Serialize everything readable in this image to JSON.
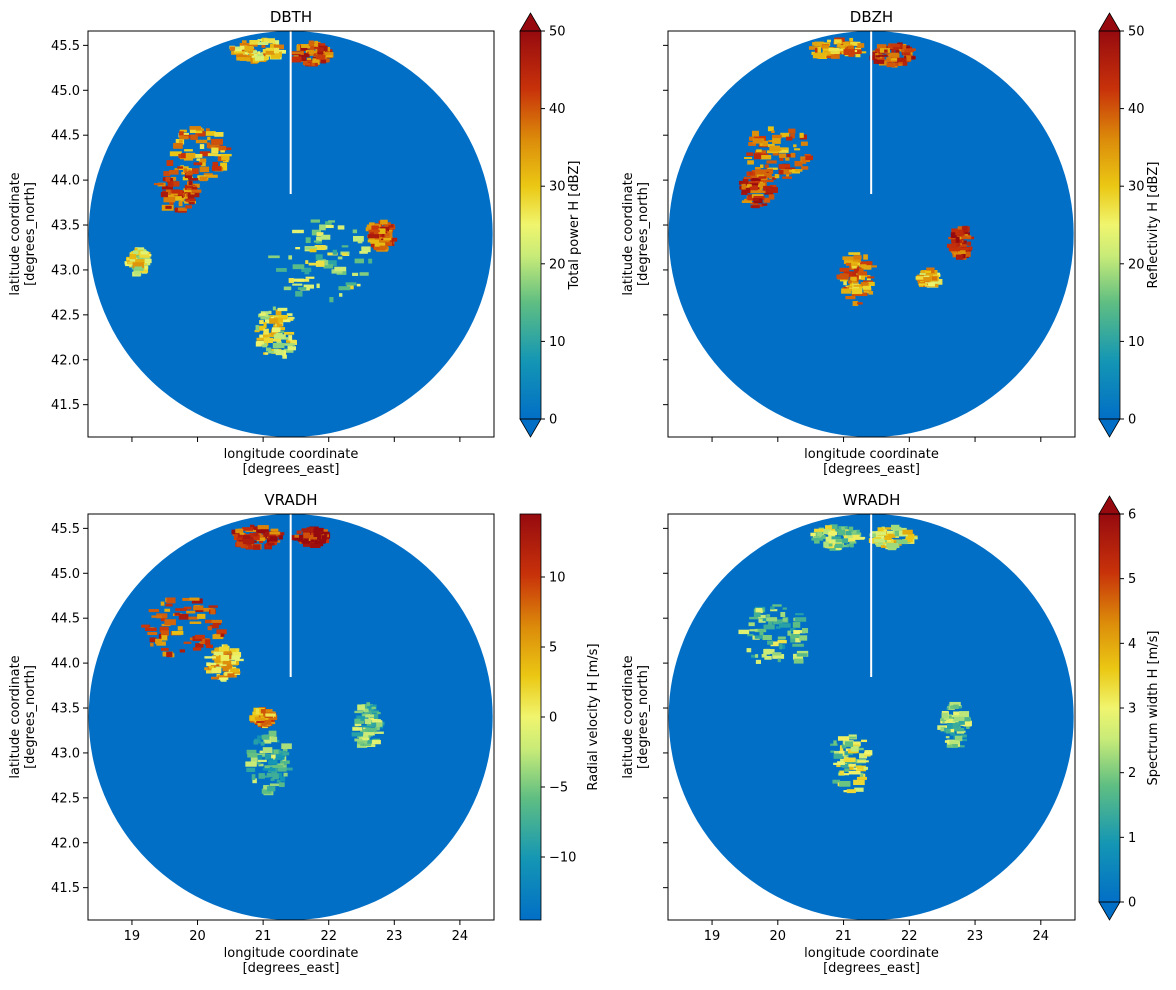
{
  "chart_data": [
    {
      "type": "heatmap",
      "title": "DBTH",
      "xlabel": "longitude coordinate\n[degrees_east]",
      "ylabel": "latitude coordinate\n[degrees_north]",
      "xlim": [
        18.33,
        24.52
      ],
      "ylim": [
        41.14,
        45.66
      ],
      "xticks": [
        19,
        20,
        21,
        22,
        23,
        24
      ],
      "yticks": [
        41.5,
        42.0,
        42.5,
        43.0,
        43.5,
        44.0,
        44.5,
        45.0,
        45.5
      ],
      "show_xtick_labels": false,
      "show_ytick_labels": true,
      "radar_center": [
        21.42,
        43.4
      ],
      "radar_range_deg": [
        3.08,
        2.26
      ],
      "colorbar": {
        "label": "Total power H [dBZ]",
        "min": 0,
        "max": 50,
        "ticks": [
          0,
          10,
          20,
          30,
          40,
          50
        ],
        "colormap": "HomeyerRainbow",
        "extend": "both"
      },
      "background_value_color": "#026fc6",
      "echo_regions": [
        {
          "center": [
            20.9,
            45.45
          ],
          "size": [
            0.8,
            0.25
          ],
          "value": 30
        },
        {
          "center": [
            21.75,
            45.4
          ],
          "size": [
            0.6,
            0.25
          ],
          "value": 40
        },
        {
          "center": [
            20.0,
            44.3
          ],
          "size": [
            1.0,
            0.6
          ],
          "value": 35
        },
        {
          "center": [
            19.7,
            43.9
          ],
          "size": [
            0.6,
            0.5
          ],
          "value": 40
        },
        {
          "center": [
            21.9,
            43.1
          ],
          "size": [
            1.5,
            0.9
          ],
          "value": 20
        },
        {
          "center": [
            22.8,
            43.4
          ],
          "size": [
            0.35,
            0.35
          ],
          "value": 40
        },
        {
          "center": [
            21.2,
            42.3
          ],
          "size": [
            0.6,
            0.6
          ],
          "value": 25
        },
        {
          "center": [
            19.1,
            43.1
          ],
          "size": [
            0.3,
            0.3
          ],
          "value": 25
        }
      ]
    },
    {
      "type": "heatmap",
      "title": "DBZH",
      "xlabel": "longitude coordinate\n[degrees_east]",
      "ylabel": "latitude coordinate\n[degrees_north]",
      "xlim": [
        18.33,
        24.52
      ],
      "ylim": [
        41.14,
        45.66
      ],
      "xticks": [
        19,
        20,
        21,
        22,
        23,
        24
      ],
      "yticks": [
        41.5,
        42.0,
        42.5,
        43.0,
        43.5,
        44.0,
        44.5,
        45.0,
        45.5
      ],
      "show_xtick_labels": false,
      "show_ytick_labels": false,
      "radar_center": [
        21.42,
        43.4
      ],
      "radar_range_deg": [
        3.08,
        2.26
      ],
      "colorbar": {
        "label": "Reflectivity H [dBZ]",
        "min": 0,
        "max": 50,
        "ticks": [
          0,
          10,
          20,
          30,
          40,
          50
        ],
        "colormap": "HomeyerRainbow",
        "extend": "both"
      },
      "background_value_color": "#026fc6",
      "echo_regions": [
        {
          "center": [
            20.9,
            45.45
          ],
          "size": [
            0.8,
            0.25
          ],
          "value": 35
        },
        {
          "center": [
            21.75,
            45.4
          ],
          "size": [
            0.6,
            0.25
          ],
          "value": 42
        },
        {
          "center": [
            20.0,
            44.3
          ],
          "size": [
            1.0,
            0.6
          ],
          "value": 38
        },
        {
          "center": [
            19.7,
            43.9
          ],
          "size": [
            0.5,
            0.4
          ],
          "value": 42
        },
        {
          "center": [
            21.2,
            42.9
          ],
          "size": [
            0.5,
            0.6
          ],
          "value": 35
        },
        {
          "center": [
            22.8,
            43.3
          ],
          "size": [
            0.3,
            0.35
          ],
          "value": 42
        },
        {
          "center": [
            22.3,
            42.9
          ],
          "size": [
            0.25,
            0.2
          ],
          "value": 30
        }
      ]
    },
    {
      "type": "heatmap",
      "title": "VRADH",
      "xlabel": "longitude coordinate\n[degrees_east]",
      "ylabel": "latitude coordinate\n[degrees_north]",
      "xlim": [
        18.33,
        24.52
      ],
      "ylim": [
        41.14,
        45.66
      ],
      "xticks": [
        19,
        20,
        21,
        22,
        23,
        24
      ],
      "yticks": [
        41.5,
        42.0,
        42.5,
        43.0,
        43.5,
        44.0,
        44.5,
        45.0,
        45.5
      ],
      "show_xtick_labels": true,
      "show_ytick_labels": true,
      "radar_center": [
        21.42,
        43.4
      ],
      "radar_range_deg": [
        3.08,
        2.26
      ],
      "colorbar": {
        "label": "Radial velocity H [m/s]",
        "min": -14.5,
        "max": 14.5,
        "ticks": [
          -10,
          -5,
          0,
          5,
          10
        ],
        "tick_labels": [
          "−10",
          "−5",
          "0",
          "5",
          "10"
        ],
        "colormap": "HomeyerRainbow",
        "extend": "neither"
      },
      "background_value_color": "#026fc6",
      "echo_regions": [
        {
          "center": [
            20.9,
            45.4
          ],
          "size": [
            0.8,
            0.25
          ],
          "value": 10
        },
        {
          "center": [
            21.75,
            45.4
          ],
          "size": [
            0.5,
            0.2
          ],
          "value": 12
        },
        {
          "center": [
            19.8,
            44.4
          ],
          "size": [
            1.2,
            0.7
          ],
          "value": 9
        },
        {
          "center": [
            20.4,
            44.0
          ],
          "size": [
            0.5,
            0.4
          ],
          "value": 3
        },
        {
          "center": [
            21.1,
            42.9
          ],
          "size": [
            0.6,
            0.7
          ],
          "value": -6
        },
        {
          "center": [
            22.6,
            43.3
          ],
          "size": [
            0.4,
            0.5
          ],
          "value": -5
        },
        {
          "center": [
            21.0,
            43.4
          ],
          "size": [
            0.3,
            0.2
          ],
          "value": 6
        }
      ]
    },
    {
      "type": "heatmap",
      "title": "WRADH",
      "xlabel": "longitude coordinate\n[degrees_east]",
      "ylabel": "latitude coordinate\n[degrees_north]",
      "xlim": [
        18.33,
        24.52
      ],
      "ylim": [
        41.14,
        45.66
      ],
      "xticks": [
        19,
        20,
        21,
        22,
        23,
        24
      ],
      "yticks": [
        41.5,
        42.0,
        42.5,
        43.0,
        43.5,
        44.0,
        44.5,
        45.0,
        45.5
      ],
      "show_xtick_labels": true,
      "show_ytick_labels": false,
      "radar_center": [
        21.42,
        43.4
      ],
      "radar_range_deg": [
        3.08,
        2.26
      ],
      "colorbar": {
        "label": "Spectrum width H [m/s]",
        "min": 0,
        "max": 6,
        "ticks": [
          0,
          1,
          2,
          3,
          4,
          5,
          6
        ],
        "colormap": "HomeyerRainbow",
        "extend": "both"
      },
      "background_value_color": "#026fc6",
      "echo_regions": [
        {
          "center": [
            20.9,
            45.4
          ],
          "size": [
            0.8,
            0.25
          ],
          "value": 2.5
        },
        {
          "center": [
            21.75,
            45.4
          ],
          "size": [
            0.6,
            0.25
          ],
          "value": 3
        },
        {
          "center": [
            20.0,
            44.3
          ],
          "size": [
            1.1,
            0.7
          ],
          "value": 2
        },
        {
          "center": [
            21.1,
            42.9
          ],
          "size": [
            0.6,
            0.7
          ],
          "value": 2.5
        },
        {
          "center": [
            22.7,
            43.3
          ],
          "size": [
            0.4,
            0.5
          ],
          "value": 2
        }
      ]
    }
  ]
}
